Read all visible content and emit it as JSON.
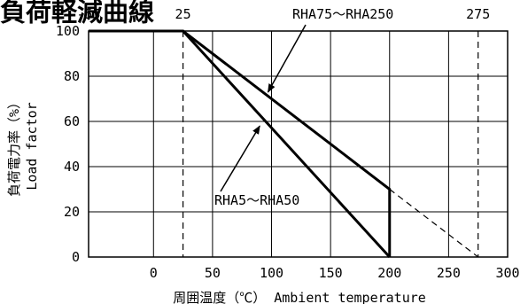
{
  "chart_data": {
    "type": "line",
    "title": "負荷軽減曲線",
    "xlabel": "周囲温度（℃）  Ambient temperature",
    "ylabel": "負荷電力率（%）",
    "ylabel2": "Load factor",
    "xlim": [
      -55,
      300
    ],
    "ylim": [
      0,
      100
    ],
    "x_ticks": [
      0,
      50,
      100,
      150,
      200,
      250,
      300
    ],
    "y_ticks": [
      0,
      20,
      40,
      60,
      80,
      100
    ],
    "top_ticks": [
      -55,
      25,
      275
    ],
    "grid": true,
    "series": [
      {
        "name": "RHA75〜RHA250",
        "x": [
          -55,
          25,
          200,
          200
        ],
        "y": [
          100,
          100,
          30,
          0
        ]
      },
      {
        "name": "RHA5〜RHA50",
        "x": [
          -55,
          25,
          200
        ],
        "y": [
          100,
          100,
          0
        ]
      }
    ],
    "extrapolation": {
      "x": [
        200,
        275
      ],
      "y": [
        30,
        0
      ],
      "style": "dashed"
    },
    "reference_lines": [
      {
        "x": 25,
        "style": "dashed"
      },
      {
        "x": 275,
        "style": "dashed"
      }
    ],
    "annotations": [
      {
        "text": "RHA75〜RHA250",
        "arrow_to": [
          97,
          73
        ]
      },
      {
        "text": "RHA5〜RHA50",
        "arrow_to": [
          90,
          58
        ]
      }
    ]
  }
}
